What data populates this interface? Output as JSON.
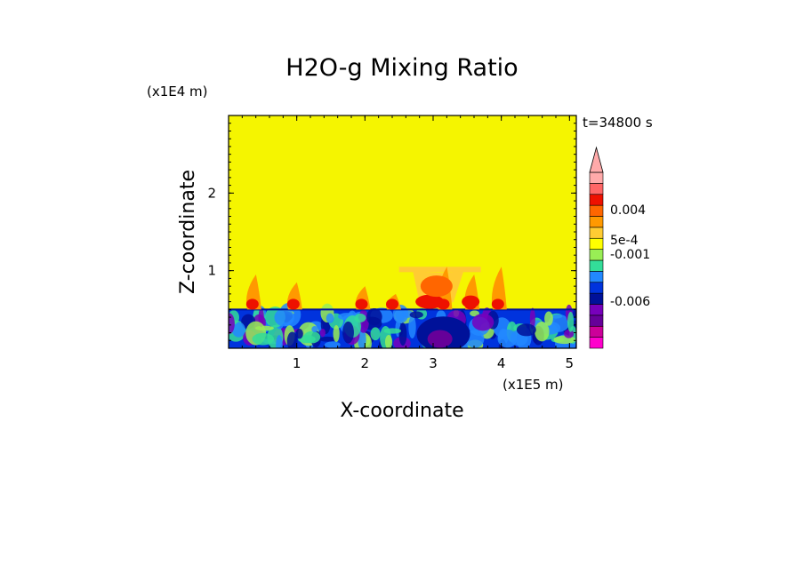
{
  "chart_data": {
    "type": "heatmap",
    "title": "H2O-g Mixing Ratio",
    "xlabel": "X-coordinate",
    "ylabel": "Z-coordinate",
    "x_scale_label": "(x1E5 m)",
    "y_scale_label": "(x1E4 m)",
    "time_label": "t=34800 s",
    "xlim": [
      0,
      5.1
    ],
    "ylim": [
      0,
      3.0
    ],
    "x_ticks": [
      1,
      2,
      3,
      4,
      5
    ],
    "x_tick_labels": [
      "1",
      "2",
      "3",
      "4",
      "5"
    ],
    "y_ticks": [
      1,
      2
    ],
    "y_tick_labels": [
      "1",
      "2"
    ],
    "background_value_color": "#f5f500",
    "boundary_layer_top_z": 0.5,
    "colorbar": {
      "levels": [
        {
          "color": "#ff00cc"
        },
        {
          "color": "#cc0099"
        },
        {
          "color": "#660099"
        },
        {
          "color": "#7700bb"
        },
        {
          "color": "#001199"
        },
        {
          "color": "#0033dd"
        },
        {
          "color": "#2288ff"
        },
        {
          "color": "#33dd99"
        },
        {
          "color": "#99ee55"
        },
        {
          "color": "#ffff00"
        },
        {
          "color": "#ffcc33"
        },
        {
          "color": "#ff9900"
        },
        {
          "color": "#ff6600"
        },
        {
          "color": "#ee1100"
        },
        {
          "color": "#ff6666"
        },
        {
          "color": "#ffaaaa"
        }
      ],
      "tick_labels": [
        "0.004",
        "5e-4",
        "-0.001",
        "-0.006"
      ]
    },
    "plumes": [
      {
        "x": 0.35,
        "z_top": 0.95
      },
      {
        "x": 0.95,
        "z_top": 0.85
      },
      {
        "x": 1.95,
        "z_top": 0.8
      },
      {
        "x": 2.4,
        "z_top": 0.7
      },
      {
        "x": 3.15,
        "z_top": 1.05
      },
      {
        "x": 3.55,
        "z_top": 0.95
      },
      {
        "x": 3.95,
        "z_top": 1.05
      }
    ]
  }
}
